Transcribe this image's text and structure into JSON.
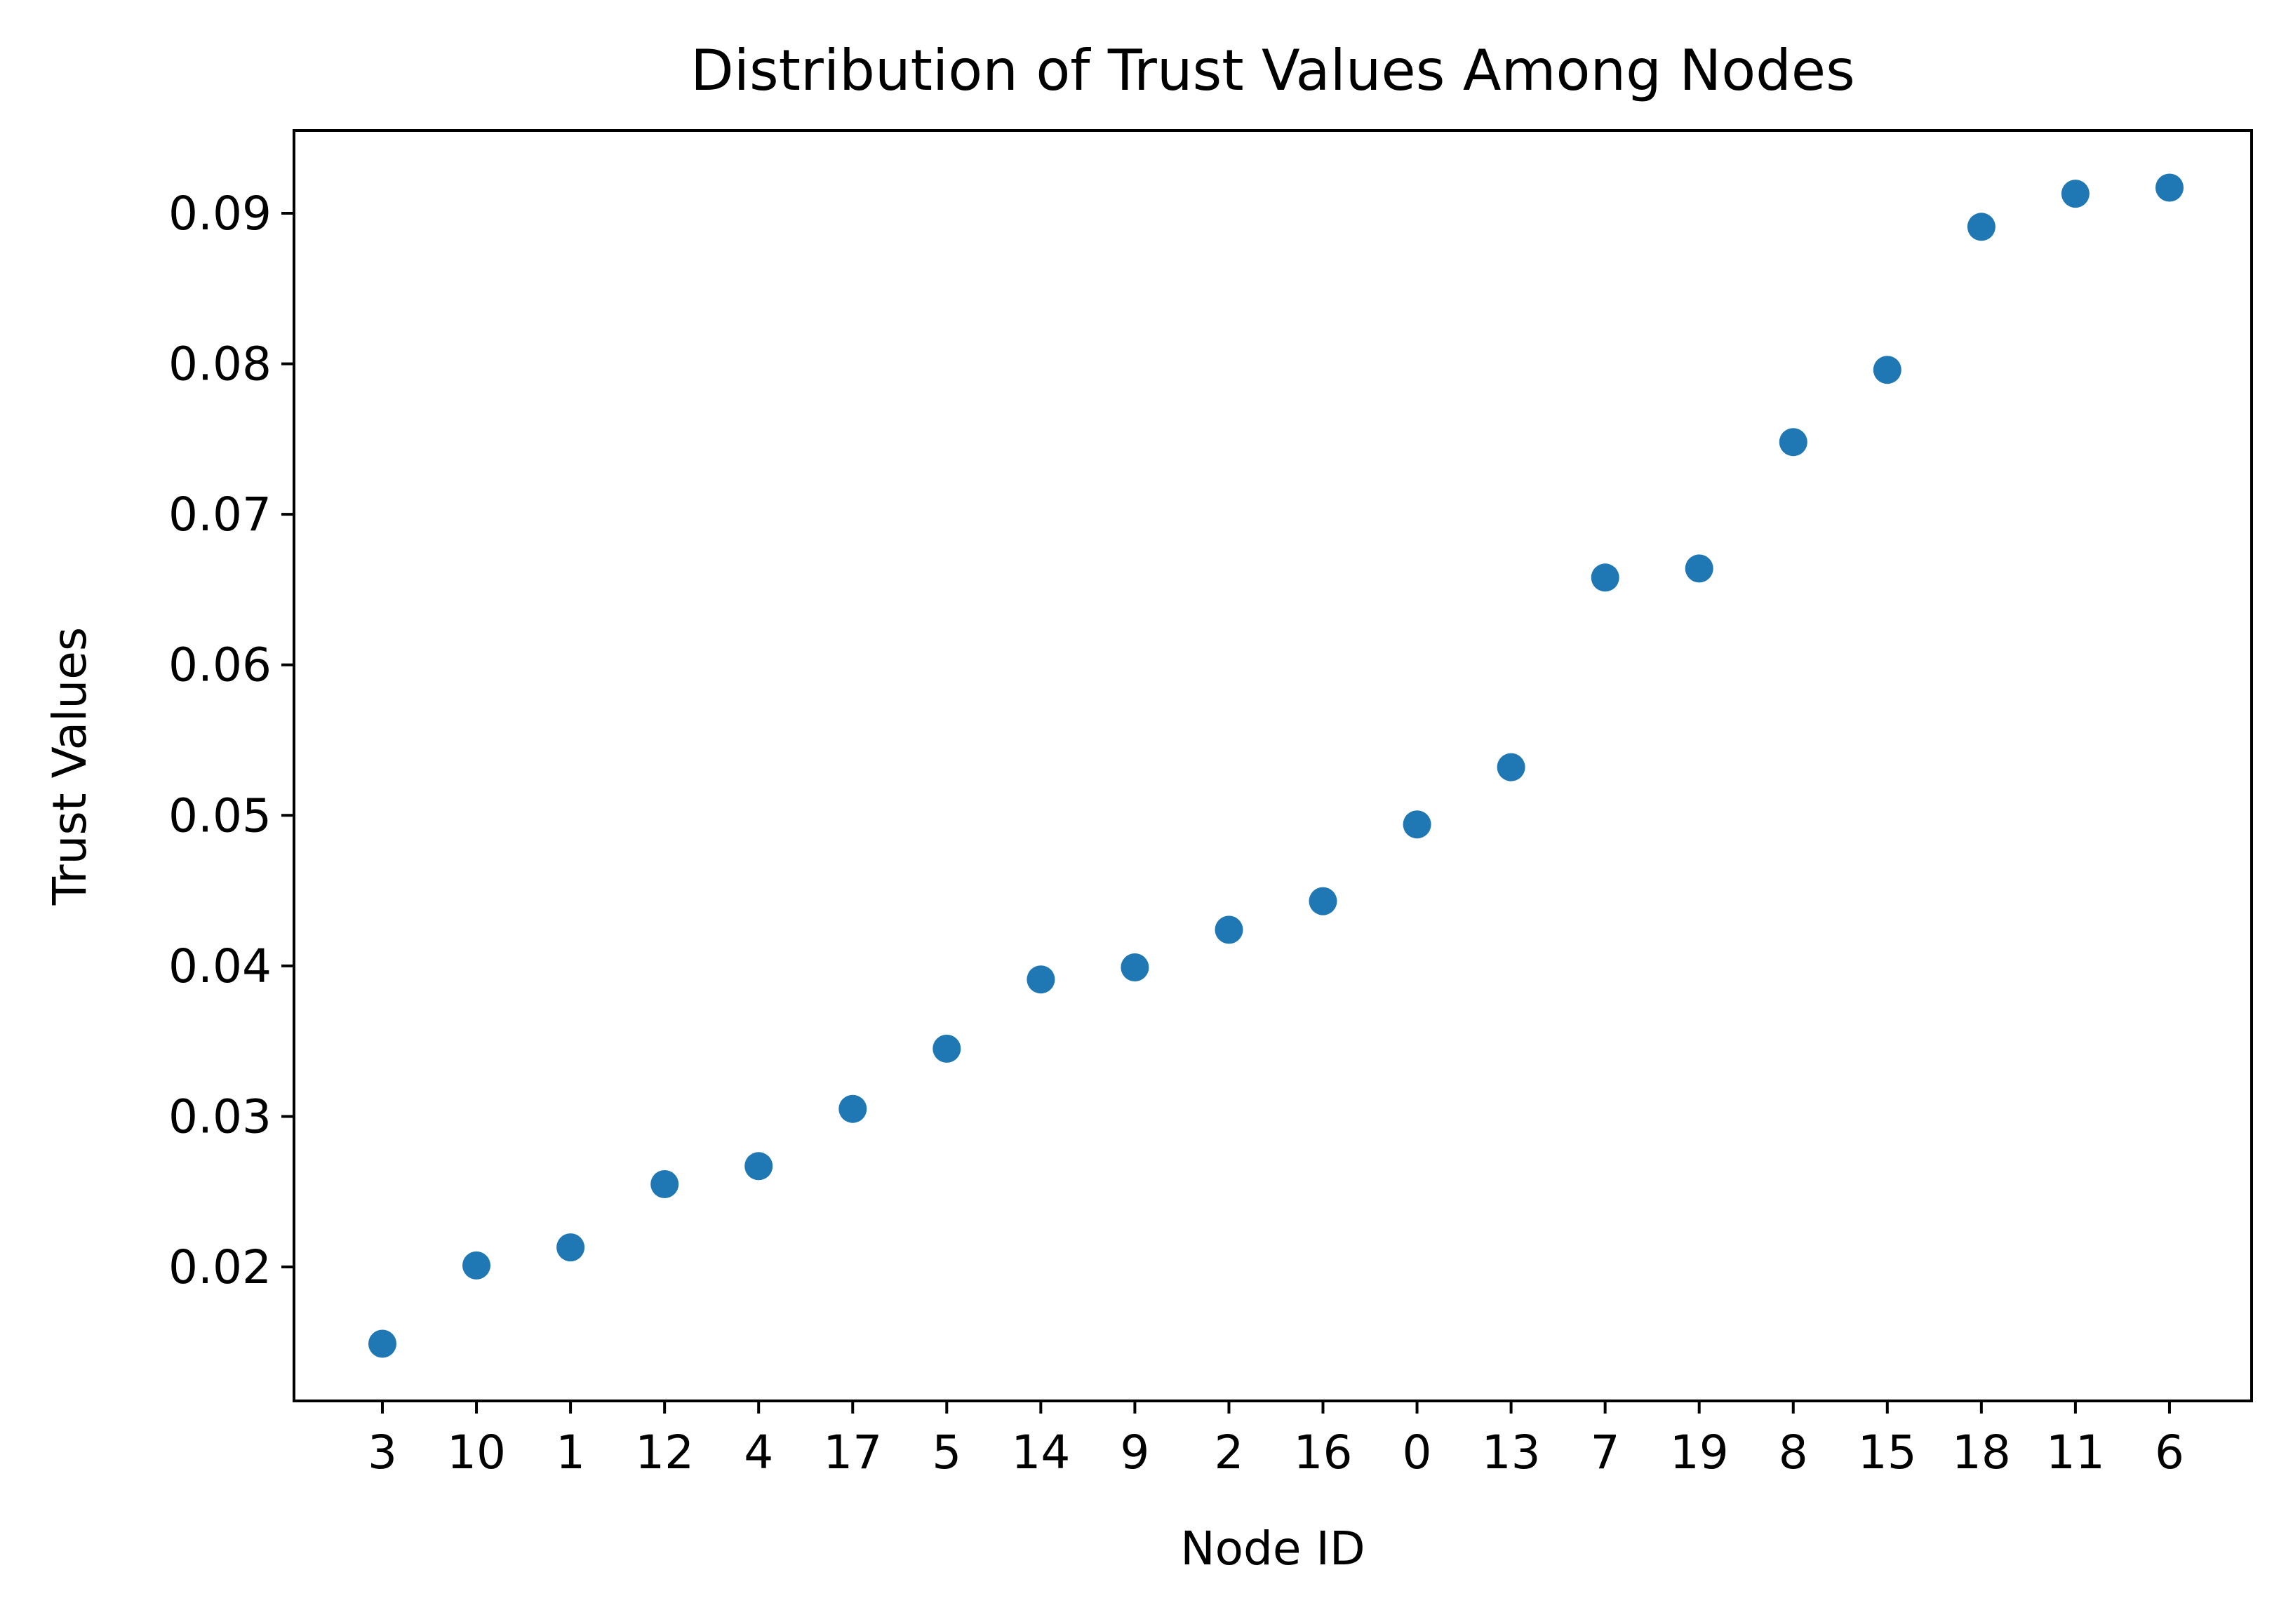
{
  "chart_data": {
    "type": "scatter",
    "title": "Distribution of Trust Values Among Nodes",
    "xlabel": "Node ID",
    "ylabel": "Trust Values",
    "categories": [
      "3",
      "10",
      "1",
      "12",
      "4",
      "17",
      "5",
      "14",
      "9",
      "2",
      "16",
      "0",
      "13",
      "7",
      "19",
      "8",
      "15",
      "18",
      "11",
      "6"
    ],
    "values": [
      0.0149,
      0.0201,
      0.0213,
      0.0255,
      0.0267,
      0.0305,
      0.0345,
      0.0391,
      0.0399,
      0.0424,
      0.0443,
      0.0494,
      0.0532,
      0.0658,
      0.0664,
      0.0748,
      0.0796,
      0.0891,
      0.0913,
      0.0917
    ],
    "yticks": [
      "0.02",
      "0.03",
      "0.04",
      "0.05",
      "0.06",
      "0.07",
      "0.08",
      "0.09"
    ],
    "ylim": [
      0.0111,
      0.0955
    ],
    "grid": false,
    "color": "#1f77b4"
  }
}
